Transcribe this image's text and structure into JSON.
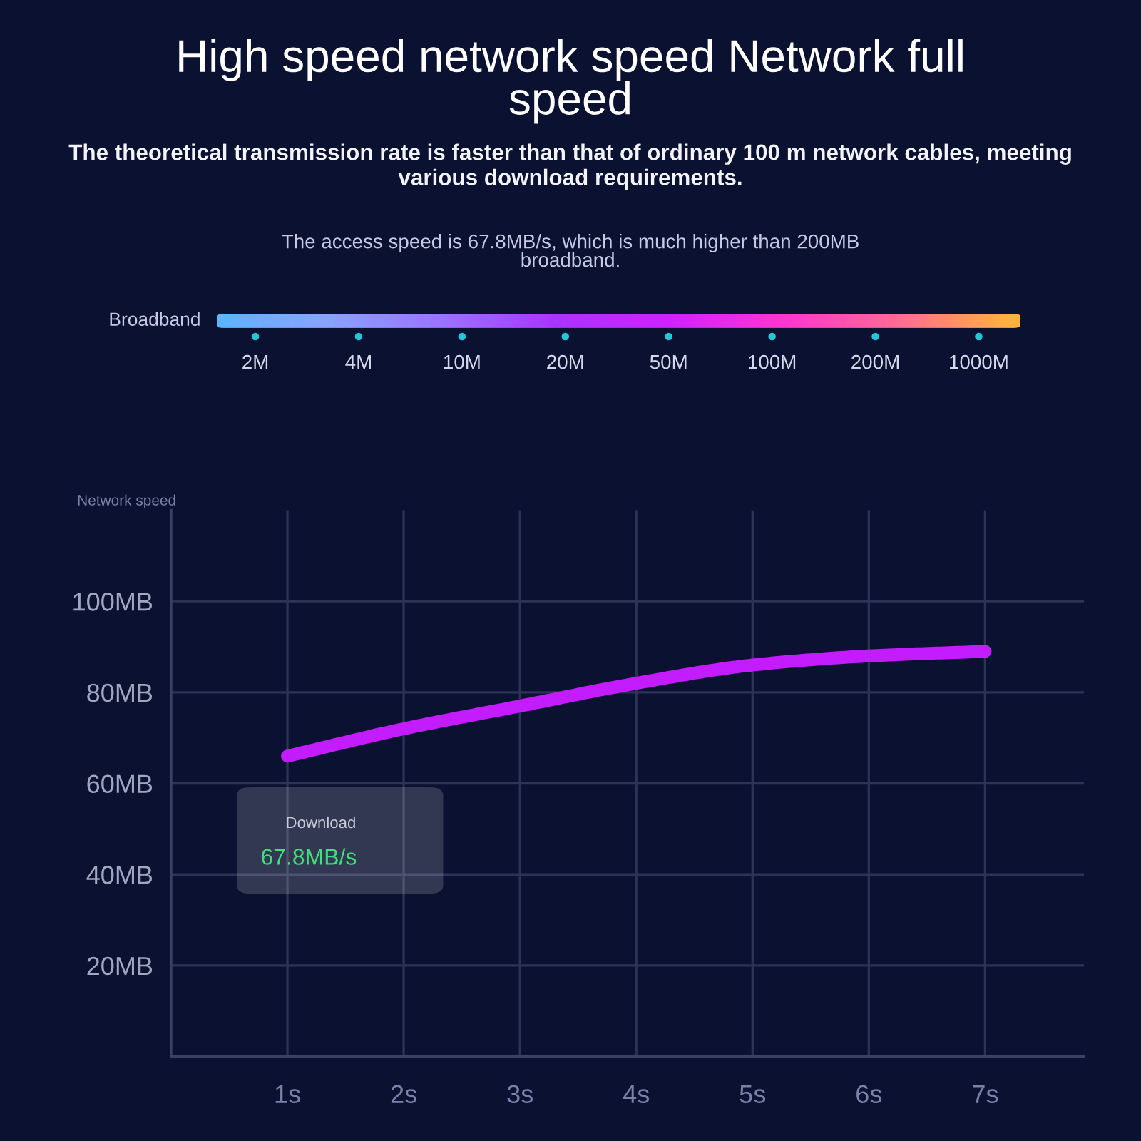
{
  "chart_data": [
    {
      "type": "other",
      "title": "High speed network speed Network full speed",
      "subtitle": "The theoretical transmission rate is faster than that of ordinary 100 m network cables, meeting various download requirements.",
      "annotations": [
        "The access speed is 67.8MB/s, which is much higher than 200MB broadband."
      ],
      "ylabel": "Broadband",
      "categories": [
        "2M",
        "4M",
        "10M",
        "20M",
        "50M",
        "100M",
        "200M",
        "1000M"
      ],
      "colors": [
        "#5cb4ff",
        "#8aa2ff",
        "#9c72ff",
        "#aa34ff",
        "#cf22ff",
        "#ff34d2",
        "#ff6a94",
        "#ffb23e"
      ]
    },
    {
      "type": "line",
      "ylabel": "Network speed",
      "x": [
        1,
        2,
        3,
        4,
        5,
        6,
        7
      ],
      "xlim": [
        0,
        7.85
      ],
      "xticks": [
        {
          "value": 1,
          "label": "1s"
        },
        {
          "value": 2,
          "label": "2s"
        },
        {
          "value": 3,
          "label": "3s"
        },
        {
          "value": 4,
          "label": "4s"
        },
        {
          "value": 5,
          "label": "5s"
        },
        {
          "value": 6,
          "label": "6s"
        },
        {
          "value": 7,
          "label": "7s"
        }
      ],
      "ylim": [
        0,
        120
      ],
      "yticks": [
        {
          "value": 20,
          "label": "20MB"
        },
        {
          "value": 40,
          "label": "40MB"
        },
        {
          "value": 60,
          "label": "60MB"
        },
        {
          "value": 80,
          "label": "80MB"
        },
        {
          "value": 100,
          "label": "100MB"
        }
      ],
      "grid": true,
      "series": [
        {
          "values": [
            66,
            72,
            77,
            82,
            86,
            88,
            89
          ],
          "color": "#c21cff"
        }
      ],
      "annotations": [
        "Download",
        "67.8MB/s"
      ]
    }
  ]
}
